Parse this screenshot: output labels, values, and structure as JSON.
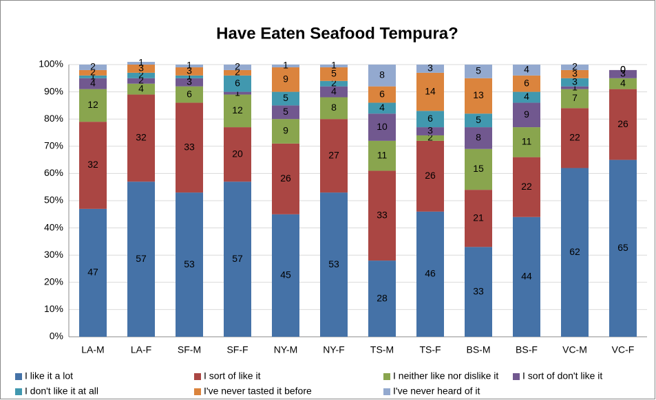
{
  "chart_data": {
    "type": "stacked_bar",
    "title": "Have Eaten Seafood Tempura?",
    "categories": [
      "LA-M",
      "LA-F",
      "SF-M",
      "SF-F",
      "NY-M",
      "NY-F",
      "TS-M",
      "TS-F",
      "BS-M",
      "BS-F",
      "VC-M",
      "VC-F"
    ],
    "series": [
      {
        "name": "I like it a lot",
        "color": "#4572a7",
        "values": [
          47,
          57,
          53,
          57,
          45,
          53,
          28,
          46,
          33,
          44,
          62,
          65
        ]
      },
      {
        "name": "I sort of like it",
        "color": "#aa4643",
        "values": [
          32,
          32,
          33,
          20,
          26,
          27,
          33,
          26,
          21,
          22,
          22,
          26
        ]
      },
      {
        "name": "I neither like nor dislike it",
        "color": "#89a54e",
        "values": [
          12,
          4,
          6,
          12,
          9,
          8,
          11,
          2,
          15,
          11,
          7,
          4
        ]
      },
      {
        "name": "I sort of don't like it",
        "color": "#71588f",
        "values": [
          4,
          2,
          3,
          1,
          5,
          4,
          10,
          3,
          8,
          9,
          1,
          3
        ]
      },
      {
        "name": "I don't like it at all",
        "color": "#4198af",
        "values": [
          1,
          2,
          1,
          6,
          5,
          2,
          4,
          6,
          5,
          4,
          3,
          0
        ]
      },
      {
        "name": "I've never tasted it before",
        "color": "#db843d",
        "values": [
          2,
          3,
          3,
          2,
          9,
          5,
          6,
          14,
          13,
          6,
          3,
          0
        ]
      },
      {
        "name": "I've never heard of it",
        "color": "#93a9cf",
        "values": [
          2,
          1,
          1,
          2,
          1,
          1,
          8,
          3,
          5,
          4,
          2,
          0
        ]
      }
    ],
    "ylim": [
      0,
      100
    ],
    "yticks": [
      {
        "value": 0,
        "label": "0%"
      },
      {
        "value": 10,
        "label": "10%"
      },
      {
        "value": 20,
        "label": "20%"
      },
      {
        "value": 30,
        "label": "30%"
      },
      {
        "value": 40,
        "label": "40%"
      },
      {
        "value": 50,
        "label": "50%"
      },
      {
        "value": 60,
        "label": "60%"
      },
      {
        "value": 70,
        "label": "70%"
      },
      {
        "value": 80,
        "label": "80%"
      },
      {
        "value": 90,
        "label": "90%"
      },
      {
        "value": 100,
        "label": "100%"
      }
    ],
    "grid": true,
    "legend": "bottom"
  }
}
